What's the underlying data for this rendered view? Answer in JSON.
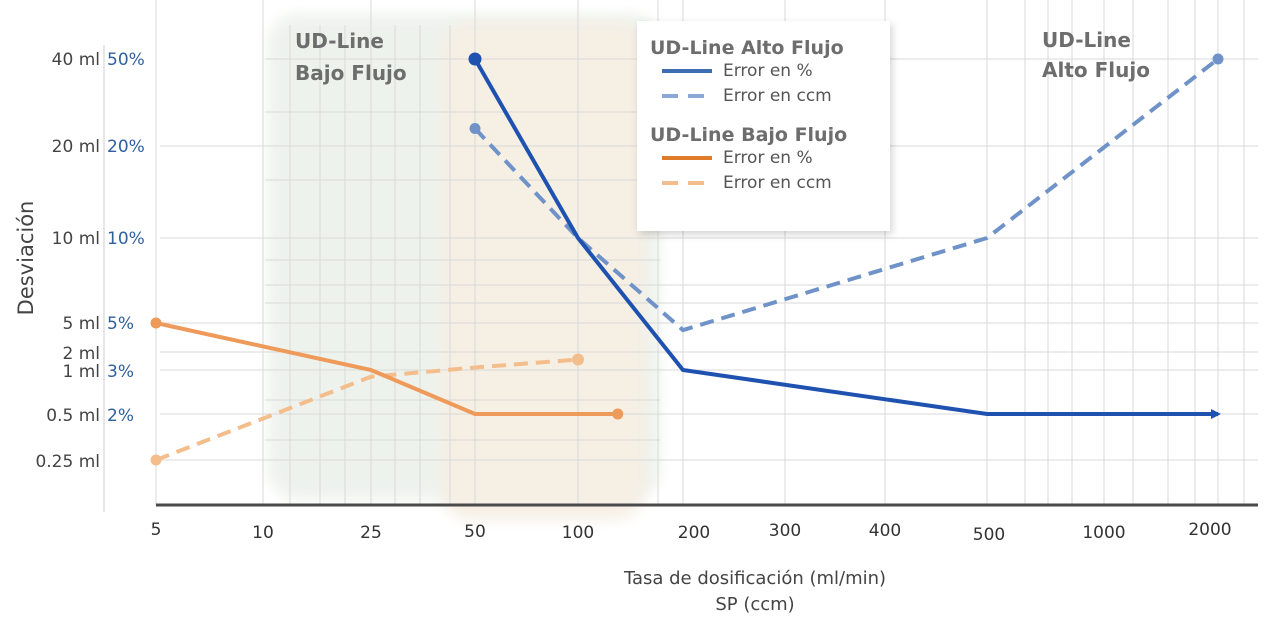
{
  "chart_data": {
    "type": "line",
    "xlabel": "Tasa de dosificación (ml/min)",
    "xlabel2": "SP (ccm)",
    "ylabel": "Desviación",
    "x_ticks": [
      "5",
      "10",
      "25",
      "50",
      "100",
      "200",
      "300",
      "400",
      "500",
      "1000",
      "2000"
    ],
    "y_ticks_ml": [
      "40 ml",
      "20 ml",
      "10 ml",
      "5 ml",
      "2 ml",
      "1 ml",
      "0.5 ml",
      "0.25 ml"
    ],
    "y_ticks_pct": [
      "50%",
      "20%",
      "10%",
      "5%",
      "3%",
      "2%"
    ],
    "regions": [
      {
        "label_lines": [
          "UD-Line",
          "Bajo Flujo"
        ],
        "color": "#eef2ec"
      },
      {
        "label_lines": [
          "UD-Line",
          "Alto Flujo"
        ],
        "color": "#f6efe4"
      }
    ],
    "legend": {
      "groups": [
        {
          "title": "UD-Line Alto Flujo",
          "items": [
            {
              "label": "Error en %",
              "color": "#3d6eb4",
              "dash": false
            },
            {
              "label": "Error en ccm",
              "color": "#8aa8d4",
              "dash": true
            }
          ]
        },
        {
          "title": "UD-Line Bajo Flujo",
          "items": [
            {
              "label": "Error en %",
              "color": "#e07b2a",
              "dash": false
            },
            {
              "label": "Error en ccm",
              "color": "#f2be8e",
              "dash": true
            }
          ]
        }
      ]
    },
    "series": [
      {
        "color": "#1f52b0",
        "dash": false,
        "start_marker": true,
        "end_arrow": true,
        "points": [
          {
            "x": "50",
            "y": "50%"
          },
          {
            "x": "100",
            "y": "10%"
          },
          {
            "x": "200",
            "y": "3%"
          },
          {
            "x": "500",
            "y": "2%"
          },
          {
            "x": "2000",
            "y": "2%"
          }
        ]
      },
      {
        "color": "#6f93c8",
        "dash": true,
        "start_marker": true,
        "end_marker": true,
        "points": [
          {
            "x": "50",
            "y": 23
          },
          {
            "x": "100",
            "y": "10 ml"
          },
          {
            "x": "200",
            "y": 4
          },
          {
            "x": "500",
            "y": "10 ml"
          },
          {
            "x": "2000",
            "y": "40 ml"
          }
        ]
      },
      {
        "color": "#ee9a5a",
        "dash": false,
        "start_marker": true,
        "end_marker": true,
        "points": [
          {
            "x": "5",
            "y": "5%"
          },
          {
            "x": "25",
            "y": "3%"
          },
          {
            "x": "50",
            "y": "2%"
          },
          {
            "x": "130",
            "y": "2%"
          }
        ]
      },
      {
        "color": "#f4bd8c",
        "dash": true,
        "start_marker": true,
        "end_marker": true,
        "points": [
          {
            "x": "5",
            "y": "0.25 ml"
          },
          {
            "x": "25",
            "y": 0.9
          },
          {
            "x": "50",
            "y": 1.1
          },
          {
            "x": "100",
            "y": 1.5
          }
        ]
      }
    ]
  }
}
